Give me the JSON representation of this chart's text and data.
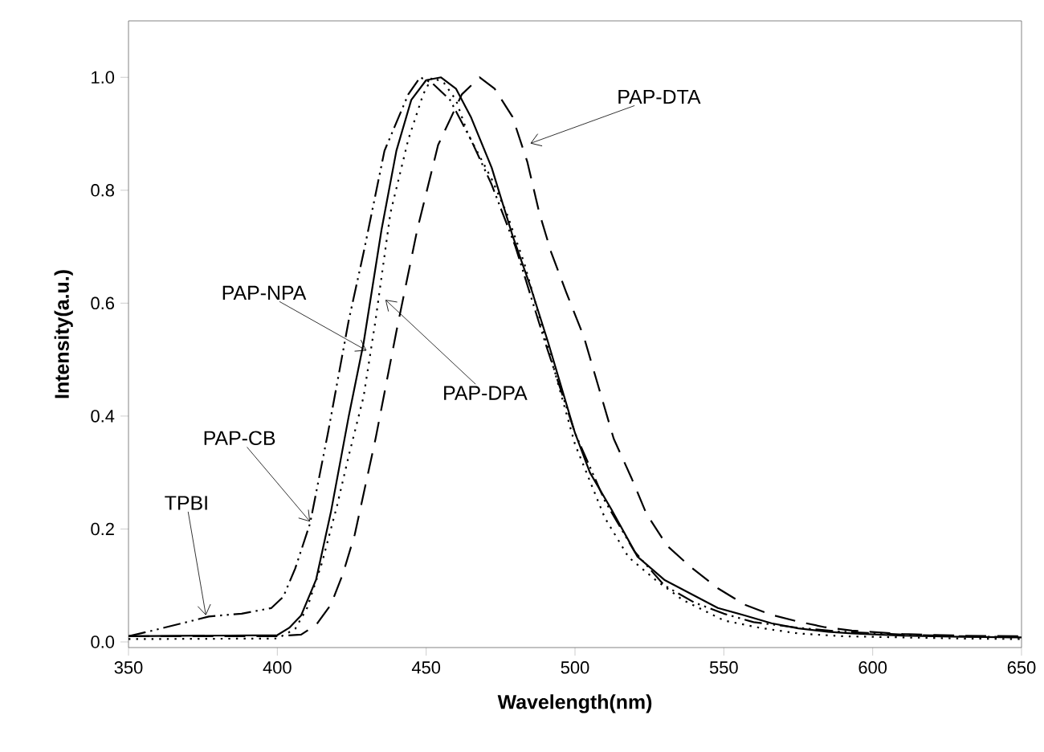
{
  "chart_data": {
    "type": "line",
    "xlabel": "Wavelength(nm)",
    "ylabel": "Intensity(a.u.)",
    "xlim": [
      350,
      650
    ],
    "ylim": [
      -0.01,
      1.1
    ],
    "xticks": [
      350,
      400,
      450,
      500,
      550,
      600,
      650
    ],
    "yticks": [
      {
        "value": 0,
        "label": "0.0"
      },
      {
        "value": 0.2,
        "label": "0.2"
      },
      {
        "value": 0.4,
        "label": "0.4"
      },
      {
        "value": 0.6,
        "label": "0.6"
      },
      {
        "value": 0.8,
        "label": "0.8"
      },
      {
        "value": 1.0,
        "label": "1.0"
      }
    ],
    "series": [
      {
        "color": "#000000",
        "line_style": "dashdotdotted",
        "x": [
          350,
          358,
          368,
          377,
          388,
          398,
          402,
          406,
          411,
          417,
          424,
          429,
          436,
          444,
          448,
          452,
          458,
          465,
          472,
          480,
          490,
          500,
          510,
          520,
          530,
          540,
          550,
          560,
          575,
          590,
          610,
          630,
          650
        ],
        "values": [
          0.01,
          0.02,
          0.033,
          0.045,
          0.05,
          0.06,
          0.08,
          0.13,
          0.21,
          0.37,
          0.57,
          0.69,
          0.87,
          0.97,
          1.0,
          0.99,
          0.96,
          0.89,
          0.81,
          0.7,
          0.53,
          0.37,
          0.25,
          0.16,
          0.1,
          0.07,
          0.05,
          0.035,
          0.025,
          0.018,
          0.013,
          0.01,
          0.008
        ]
      },
      {
        "color": "#000000",
        "line_style": "solid",
        "x": [
          350,
          400,
          404,
          408,
          413,
          418,
          424,
          429,
          435,
          440,
          445,
          450,
          455,
          460,
          465,
          472,
          479,
          485,
          491,
          500,
          505,
          512,
          521,
          530,
          539,
          548,
          557,
          566,
          575,
          585,
          593,
          610,
          630,
          650
        ],
        "values": [
          0.01,
          0.012,
          0.025,
          0.047,
          0.11,
          0.23,
          0.4,
          0.53,
          0.73,
          0.87,
          0.96,
          0.995,
          1.0,
          0.98,
          0.93,
          0.84,
          0.72,
          0.63,
          0.53,
          0.37,
          0.3,
          0.237,
          0.151,
          0.11,
          0.085,
          0.06,
          0.047,
          0.033,
          0.024,
          0.018,
          0.015,
          0.011,
          0.009,
          0.008
        ]
      },
      {
        "color": "#000000",
        "line_style": "dotted",
        "x": [
          350,
          400,
          406,
          410,
          415,
          420,
          424,
          429,
          433,
          438,
          444,
          449,
          452,
          456,
          460,
          464,
          468,
          472,
          477,
          483,
          491,
          500,
          510,
          518,
          527,
          536,
          550,
          562,
          575,
          590,
          610,
          630,
          650
        ],
        "values": [
          0.005,
          0.006,
          0.023,
          0.06,
          0.14,
          0.24,
          0.33,
          0.435,
          0.57,
          0.76,
          0.89,
          0.97,
          1.0,
          0.99,
          0.96,
          0.9,
          0.86,
          0.82,
          0.76,
          0.67,
          0.52,
          0.35,
          0.22,
          0.15,
          0.11,
          0.075,
          0.038,
          0.025,
          0.015,
          0.01,
          0.008,
          0.006,
          0.005
        ]
      },
      {
        "color": "#000000",
        "line_style": "dashed",
        "x": [
          350,
          400,
          408,
          413,
          418,
          422,
          426,
          433,
          440,
          447,
          454,
          462,
          468,
          473,
          479,
          484,
          488,
          492,
          497,
          503,
          508,
          513,
          519,
          524,
          531,
          539,
          548,
          557,
          566,
          575,
          584,
          593,
          610,
          630,
          650
        ],
        "values": [
          0.01,
          0.01,
          0.013,
          0.03,
          0.066,
          0.12,
          0.19,
          0.36,
          0.55,
          0.73,
          0.88,
          0.97,
          1.0,
          0.98,
          0.93,
          0.85,
          0.76,
          0.69,
          0.62,
          0.54,
          0.45,
          0.36,
          0.29,
          0.227,
          0.17,
          0.132,
          0.095,
          0.066,
          0.048,
          0.036,
          0.026,
          0.02,
          0.014,
          0.011,
          0.01
        ]
      }
    ],
    "annotations": [
      {
        "text": "PAP-DTA",
        "x": 485,
        "y": 0.883
      },
      {
        "text": "PAP-NPA",
        "x": 430,
        "y": 0.516
      },
      {
        "text": "PAP-DPA",
        "x": 436.3,
        "y": 0.606
      },
      {
        "text": "PAP-CB",
        "x": 411,
        "y": 0.213
      },
      {
        "text": "TPBI",
        "x": 376,
        "y": 0.047
      }
    ]
  }
}
